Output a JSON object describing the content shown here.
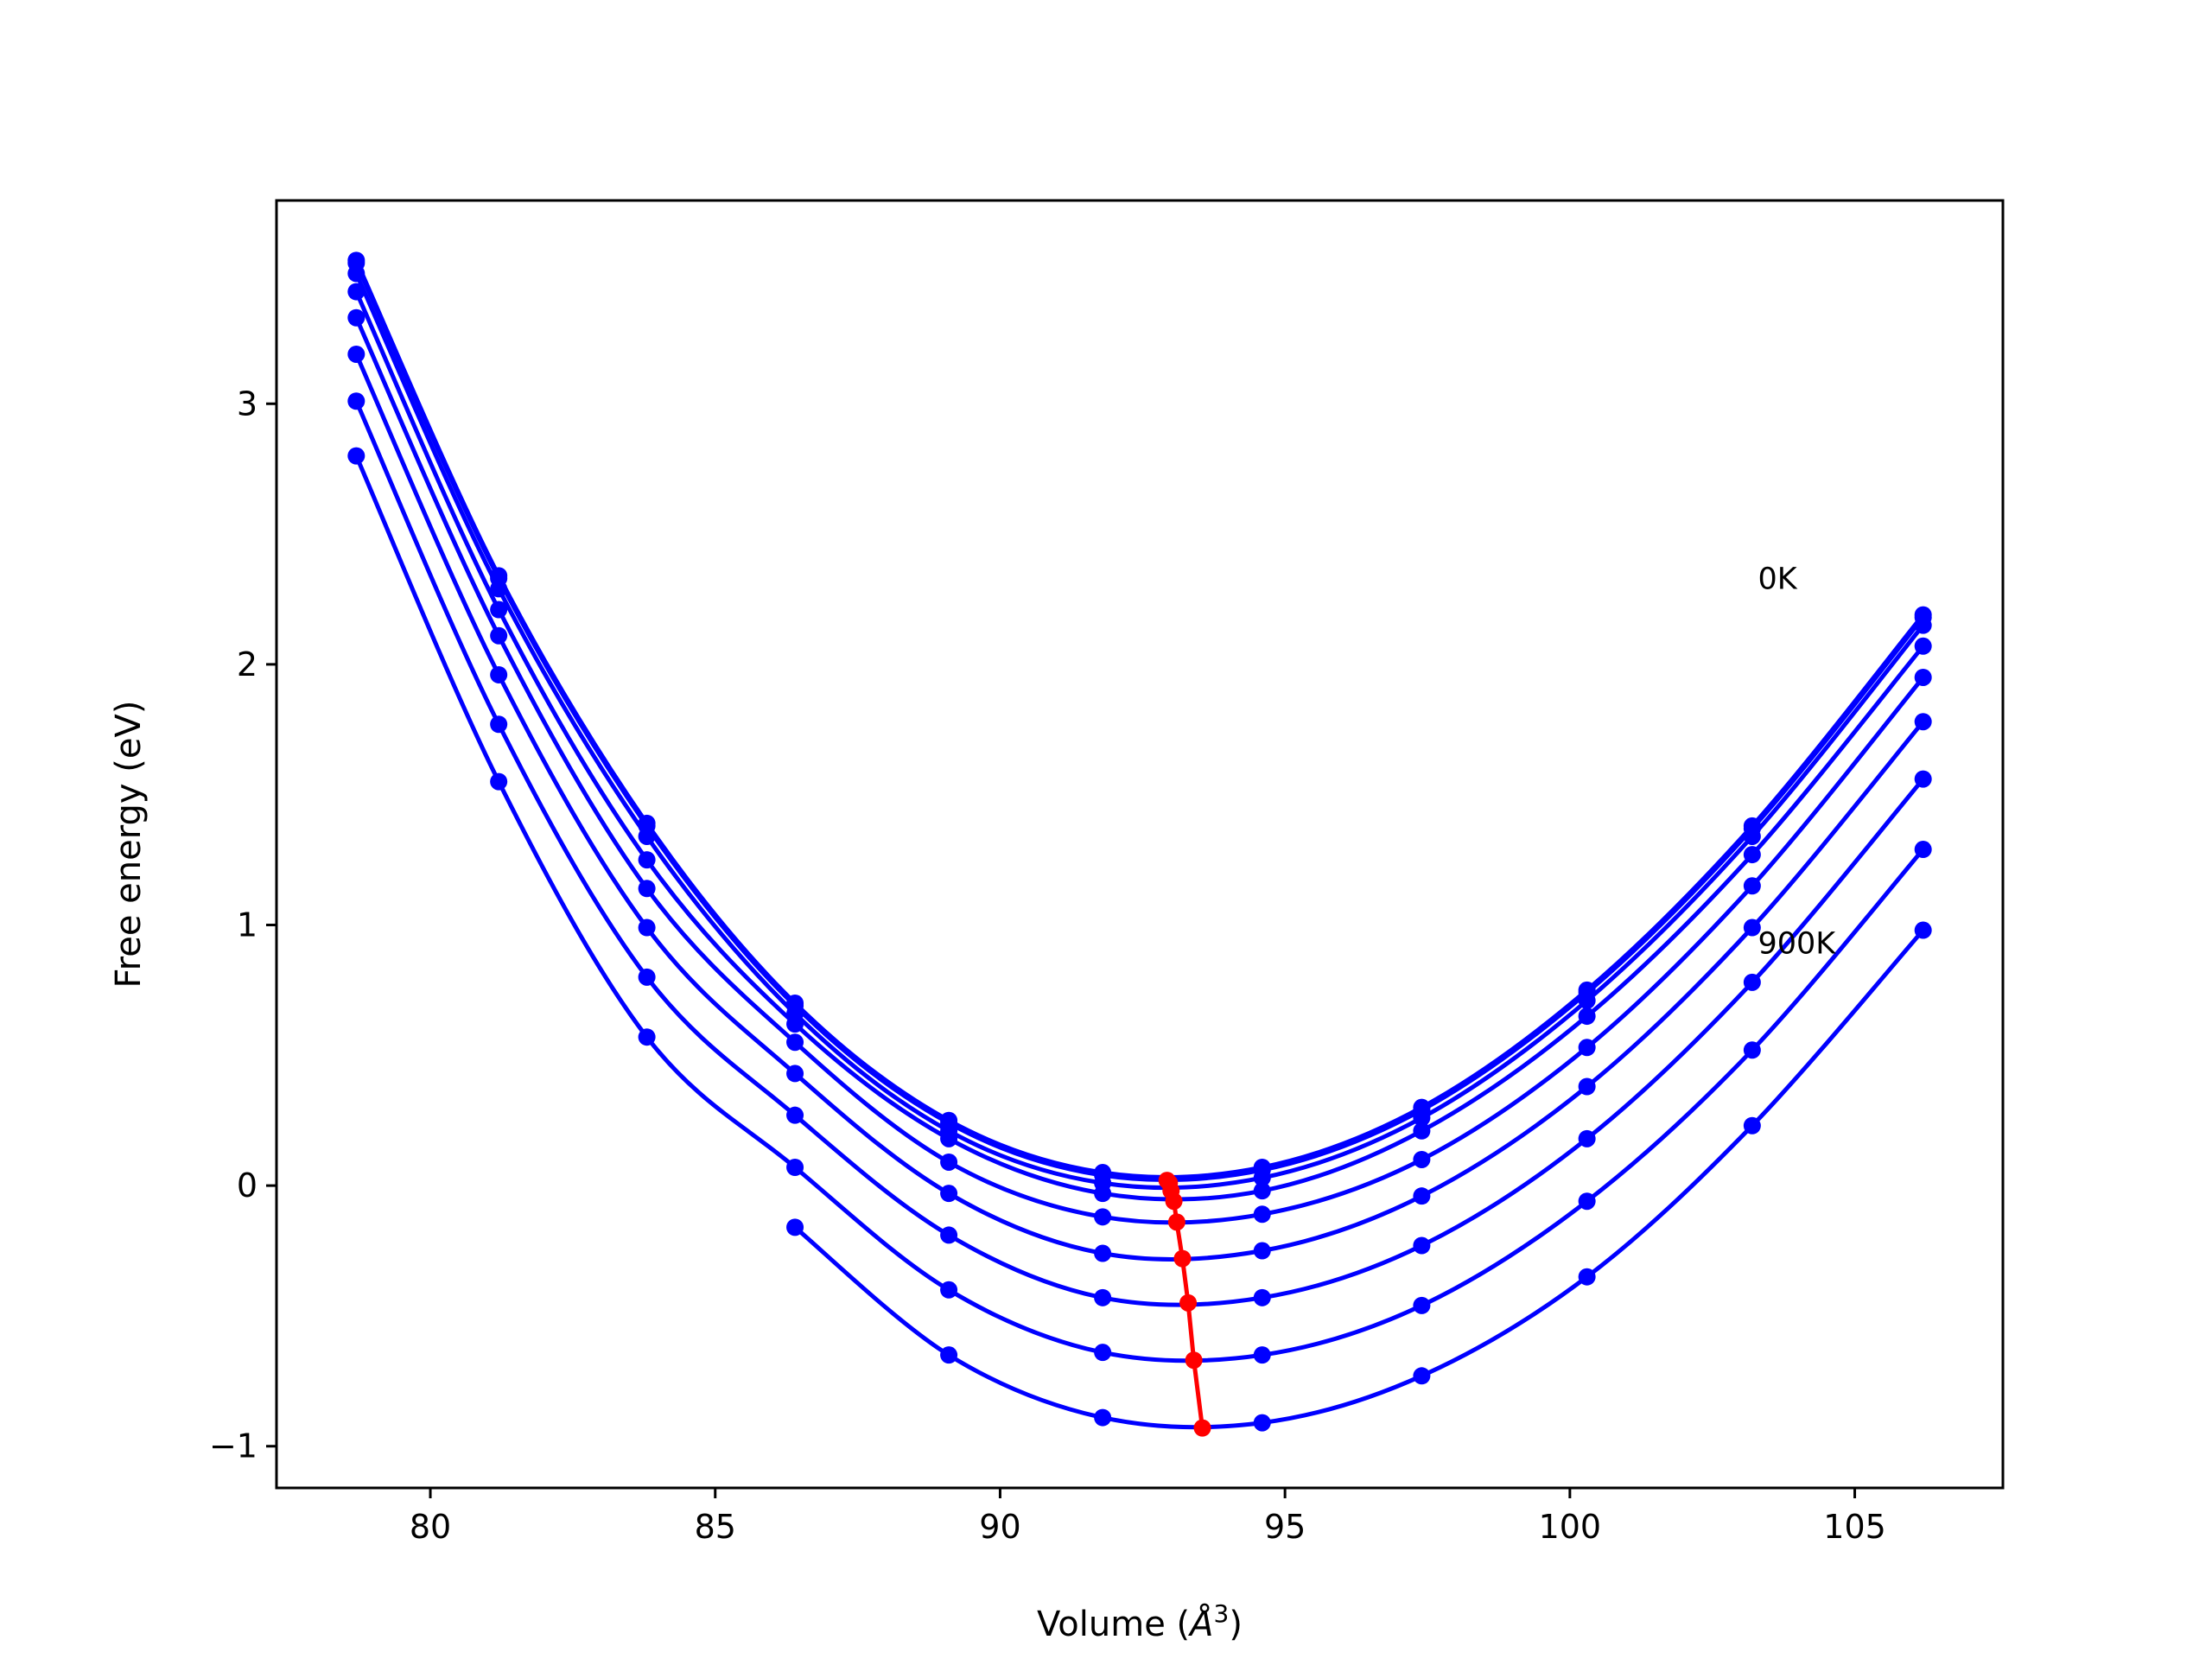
{
  "chart_data": {
    "type": "line",
    "xlabel_prefix": "Volume (",
    "xlabel_symbol": "Å",
    "xlabel_exp": "3",
    "xlabel_suffix": ")",
    "ylabel": "Free energy (eV)",
    "xlim": [
      77.3,
      107.6
    ],
    "ylim": [
      -1.16,
      3.78
    ],
    "xticks": [
      80,
      85,
      90,
      95,
      100,
      105
    ],
    "yticks": [
      -1,
      0,
      1,
      2,
      3
    ],
    "xtick_labels": [
      "80",
      "85",
      "90",
      "95",
      "100",
      "105"
    ],
    "ytick_labels": [
      "−1",
      "0",
      "1",
      "2",
      "3"
    ],
    "grid": false,
    "volumes": [
      78.7,
      81.2,
      83.8,
      86.4,
      89.1,
      91.8,
      94.6,
      97.4,
      100.3,
      103.2,
      106.2
    ],
    "colors": {
      "isotherm": "#0000ff",
      "minimum": "#ff0000"
    },
    "series": [
      {
        "values": [
          3.55,
          2.34,
          1.39,
          0.7,
          0.25,
          0.05,
          0.07,
          0.3,
          0.75,
          1.38,
          2.19
        ]
      },
      {
        "values": [
          3.54,
          2.33,
          1.38,
          0.69,
          0.24,
          0.04,
          0.06,
          0.29,
          0.74,
          1.37,
          2.18
        ]
      },
      {
        "values": [
          3.5,
          2.29,
          1.34,
          0.66,
          0.21,
          0.01,
          0.03,
          0.26,
          0.71,
          1.34,
          2.15
        ]
      },
      {
        "values": [
          3.43,
          2.21,
          1.25,
          0.62,
          0.18,
          -0.03,
          -0.02,
          0.21,
          0.65,
          1.27,
          2.07
        ]
      },
      {
        "values": [
          3.33,
          2.11,
          1.14,
          0.55,
          0.09,
          -0.12,
          -0.11,
          0.1,
          0.53,
          1.15,
          1.95
        ]
      },
      {
        "values": [
          3.19,
          1.96,
          0.99,
          0.43,
          -0.03,
          -0.26,
          -0.25,
          -0.04,
          0.38,
          0.99,
          1.78
        ]
      },
      {
        "values": [
          3.01,
          1.77,
          0.8,
          0.27,
          -0.19,
          -0.43,
          -0.43,
          -0.23,
          0.18,
          0.78,
          1.56
        ]
      },
      {
        "values": [
          2.8,
          1.55,
          0.57,
          0.07,
          -0.4,
          -0.64,
          -0.65,
          -0.46,
          -0.06,
          0.52,
          1.29
        ]
      },
      {
        "values": [
          null,
          null,
          null,
          -0.16,
          -0.65,
          -0.89,
          -0.91,
          -0.73,
          -0.35,
          0.23,
          0.98
        ]
      }
    ],
    "minima": [
      {
        "x": 92.93,
        "y": 0.02
      },
      {
        "x": 92.97,
        "y": 0.01
      },
      {
        "x": 93.0,
        "y": -0.02
      },
      {
        "x": 93.05,
        "y": -0.06
      },
      {
        "x": 93.1,
        "y": -0.14
      },
      {
        "x": 93.2,
        "y": -0.28
      },
      {
        "x": 93.3,
        "y": -0.45
      },
      {
        "x": 93.4,
        "y": -0.67
      },
      {
        "x": 93.55,
        "y": -0.93
      }
    ],
    "annotations": [
      {
        "text": "0K",
        "x": 103.3,
        "y": 2.29
      },
      {
        "text": "900K",
        "x": 103.3,
        "y": 0.89
      }
    ]
  }
}
